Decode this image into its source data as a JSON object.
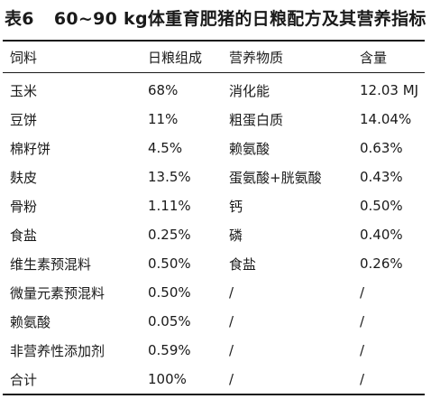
{
  "title": {
    "label": "表6",
    "text": "60~90 kg体重育肥猪的日粮配方及其营养指标"
  },
  "columns": [
    "饲料",
    "日粮组成",
    "营养物质",
    "含量"
  ],
  "rows": [
    [
      "玉米",
      "68%",
      "消化能",
      "12.03 MJ"
    ],
    [
      "豆饼",
      "11%",
      "粗蛋白质",
      "14.04%"
    ],
    [
      "棉籽饼",
      "4.5%",
      "赖氨酸",
      "0.63%"
    ],
    [
      "麸皮",
      "13.5%",
      "蛋氨酸+胱氨酸",
      "0.43%"
    ],
    [
      "骨粉",
      "1.11%",
      "钙",
      "0.50%"
    ],
    [
      "食盐",
      "0.25%",
      "磷",
      "0.40%"
    ],
    [
      "维生素预混料",
      "0.50%",
      "食盐",
      "0.26%"
    ],
    [
      "微量元素预混料",
      "0.50%",
      "/",
      "/"
    ],
    [
      "赖氨酸",
      "0.05%",
      "/",
      "/"
    ],
    [
      "非营养性添加剂",
      "0.59%",
      "/",
      "/"
    ],
    [
      "合计",
      "100%",
      "/",
      "/"
    ]
  ]
}
